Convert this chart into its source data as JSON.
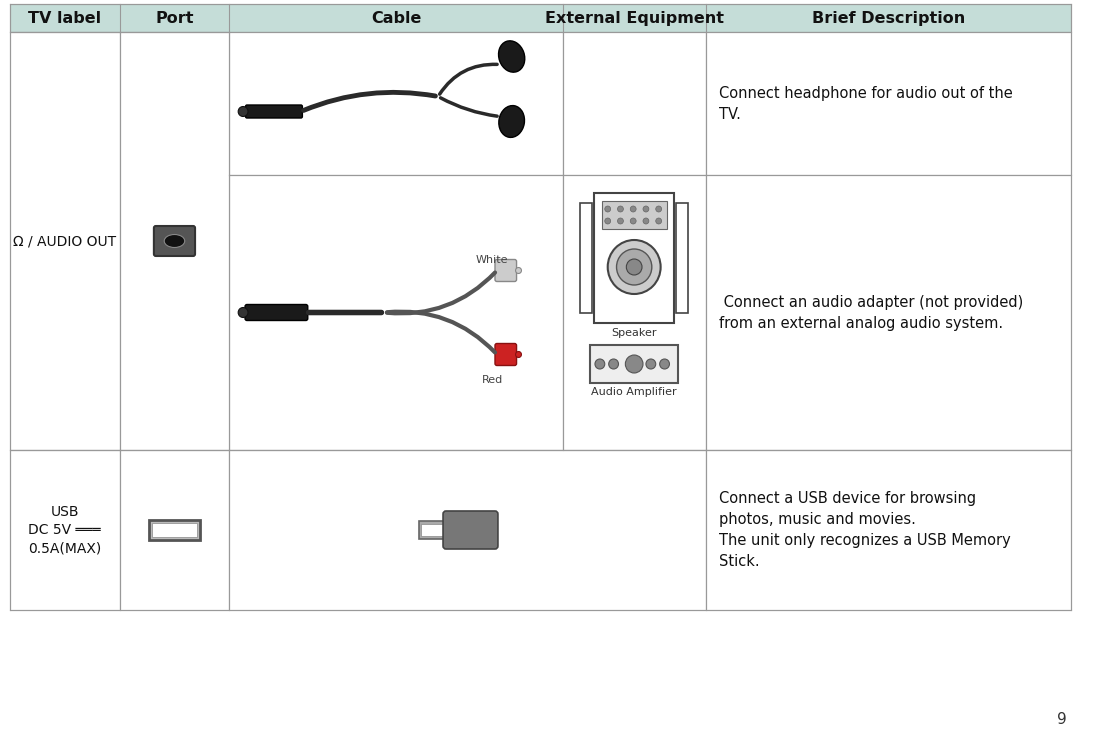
{
  "header_bg": "#c5ddd8",
  "header_text_color": "#111111",
  "body_bg": "#ffffff",
  "border_color": "#999999",
  "header_font_size": 11.5,
  "body_font_size": 10.5,
  "col_headers": [
    "TV label",
    "Port",
    "Cable",
    "External Equipment",
    "Brief Description"
  ],
  "page_number": "9",
  "desc_row1": "Connect headphone for audio out of the\nTV.",
  "desc_row2": " Connect an audio adapter (not provided)\nfrom an external analog audio system.",
  "desc_row3": "Connect a USB device for browsing\nphotos, music and movies.\nThe unit only recognizes a USB Memory\nStick.",
  "audio_label": "/ AUDIO OUT",
  "usb_label_line1": "USB",
  "usb_label_line2": "DC 5V",
  "usb_label_line3": "0.5A(MAX)",
  "speaker_label": "Speaker",
  "amp_label": "Audio Amplifier",
  "white_label": "White",
  "red_label": "Red"
}
